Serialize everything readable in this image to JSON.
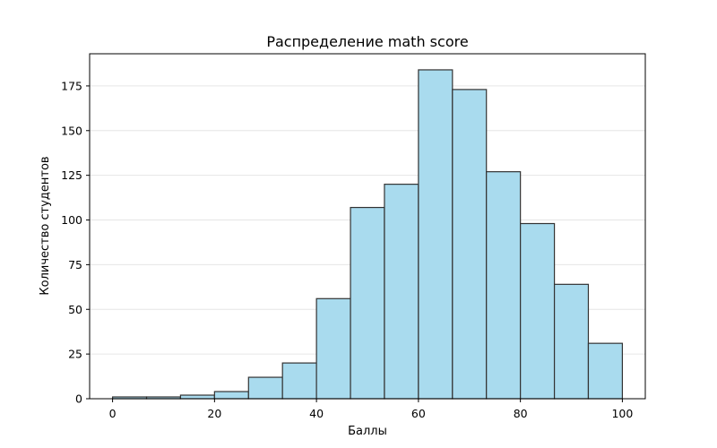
{
  "chart_data": {
    "type": "bar",
    "subtype": "histogram",
    "title": "Распределение math score",
    "xlabel": "Баллы",
    "ylabel": "Количество студентов",
    "bin_edges": [
      0,
      6.67,
      13.33,
      20,
      26.67,
      33.33,
      40,
      46.67,
      53.33,
      60,
      66.67,
      73.33,
      80,
      86.67,
      93.33,
      100
    ],
    "values": [
      1,
      1,
      2,
      4,
      12,
      20,
      56,
      107,
      120,
      184,
      173,
      127,
      98,
      64,
      31
    ],
    "xlim": [
      -4.5,
      104.5
    ],
    "ylim": [
      0,
      193
    ],
    "xticks": [
      0,
      20,
      40,
      60,
      80,
      100
    ],
    "yticks": [
      0,
      25,
      50,
      75,
      100,
      125,
      150,
      175
    ],
    "grid": {
      "axis": "y",
      "on": true,
      "color": "#e6e6e6"
    },
    "bar_color": "#a9dbee",
    "edge_color": "#333333",
    "legend": null
  }
}
